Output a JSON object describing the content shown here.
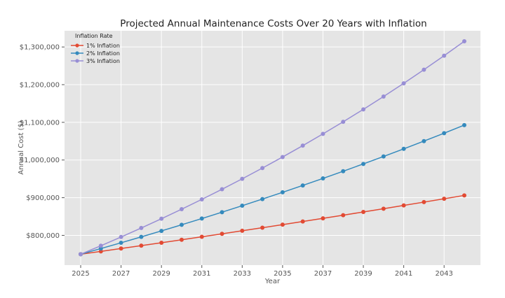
{
  "chart_data": {
    "type": "line",
    "title": "Projected Annual Maintenance Costs Over 20 Years with Inflation",
    "xlabel": "Year",
    "ylabel": "Annual Cost ($)",
    "xlim": [
      2024.2,
      2044.8
    ],
    "ylim": [
      721000,
      1343000
    ],
    "x_ticks": [
      2025,
      2027,
      2029,
      2031,
      2033,
      2035,
      2037,
      2039,
      2041,
      2043
    ],
    "x_tick_labels": [
      "2025",
      "2027",
      "2029",
      "2031",
      "2033",
      "2035",
      "2037",
      "2039",
      "2041",
      "2043"
    ],
    "y_ticks": [
      800000,
      900000,
      1000000,
      1100000,
      1200000,
      1300000
    ],
    "y_tick_labels": [
      "$800,000",
      "$900,000",
      "$1,000,000",
      "$1,100,000",
      "$1,200,000",
      "$1,300,000"
    ],
    "grid": true,
    "legend": {
      "title": "Inflation Rate",
      "placement": "top-left"
    },
    "x": [
      2025,
      2026,
      2027,
      2028,
      2029,
      2030,
      2031,
      2032,
      2033,
      2034,
      2035,
      2036,
      2037,
      2038,
      2039,
      2040,
      2041,
      2042,
      2043,
      2044
    ],
    "series": [
      {
        "name": "1% Inflation",
        "color": "#E24A33",
        "values": [
          750000,
          757500,
          765075,
          772726,
          780453,
          788258,
          796140,
          804101,
          812142,
          820264,
          828466,
          836751,
          845119,
          853570,
          862105,
          870726,
          879434,
          888228,
          897110,
          906081
        ]
      },
      {
        "name": "2% Inflation",
        "color": "#348ABD",
        "values": [
          750000,
          765000,
          780300,
          795906,
          811824,
          828061,
          844622,
          861514,
          878745,
          896319,
          914246,
          932530,
          951181,
          970205,
          989609,
          1009401,
          1029589,
          1050181,
          1071185,
          1092608
        ]
      },
      {
        "name": "3% Inflation",
        "color": "#988ED5",
        "values": [
          750000,
          772500,
          795675,
          819545,
          844132,
          869456,
          895539,
          922405,
          950078,
          978580,
          1007937,
          1038175,
          1069321,
          1101400,
          1134442,
          1168476,
          1203530,
          1239636,
          1276825,
          1315130
        ]
      }
    ]
  }
}
